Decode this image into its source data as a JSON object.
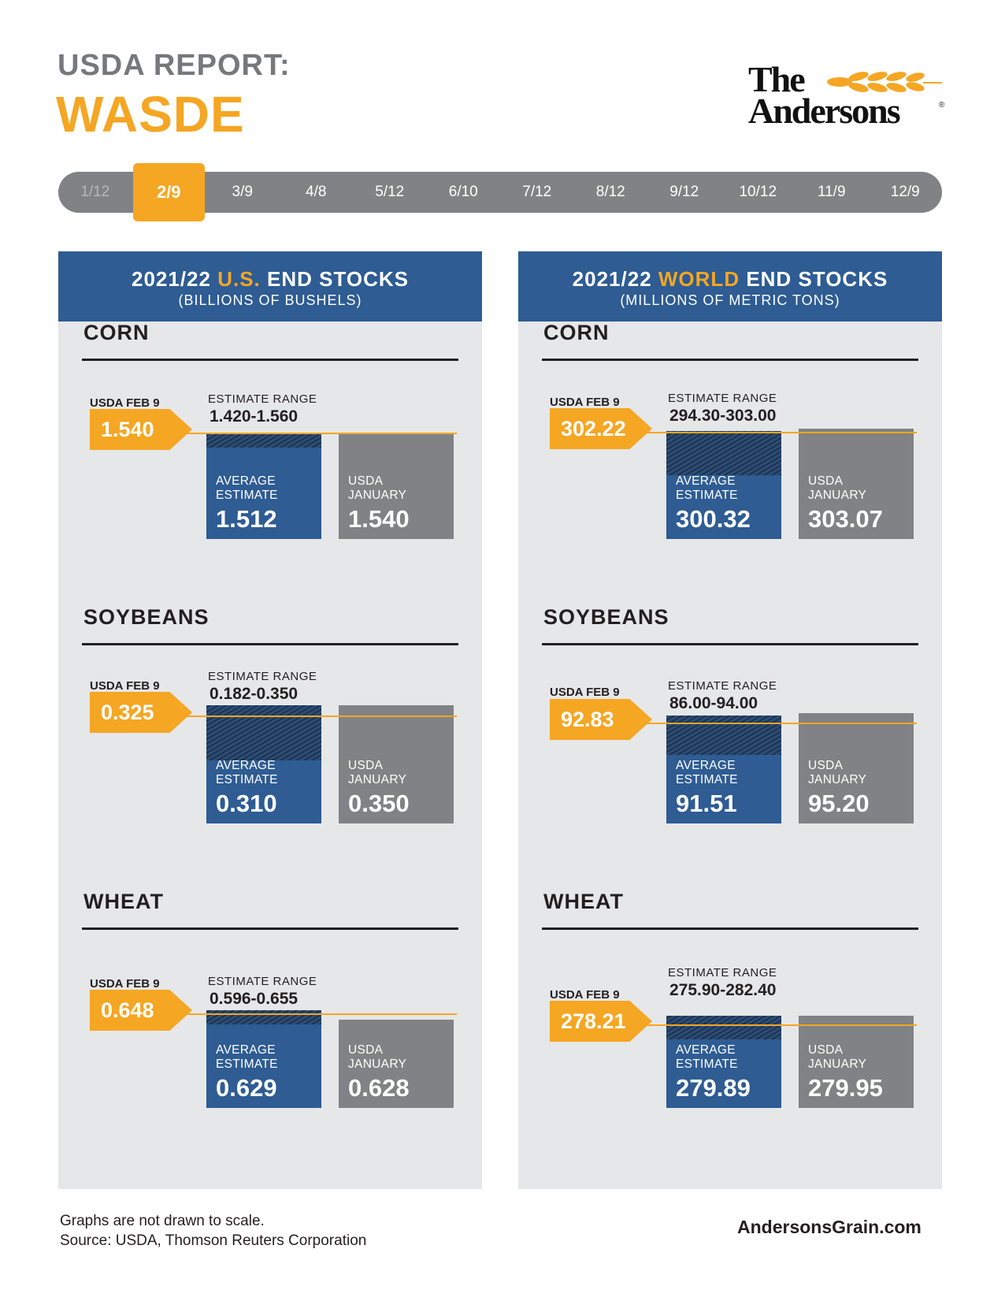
{
  "header": {
    "report_label": "USDA REPORT:",
    "report_name": "WASDE"
  },
  "logo": {
    "line1": "The",
    "line2": "Andersons",
    "reg_mark": "®"
  },
  "timeline": {
    "dates": [
      "1/12",
      "2/9",
      "3/9",
      "4/8",
      "5/12",
      "6/10",
      "7/12",
      "8/12",
      "9/12",
      "10/12",
      "11/9",
      "12/9"
    ],
    "active_index": 1
  },
  "colors": {
    "orange": "#f5a623",
    "blue": "#2e5c93",
    "gray": "#818285",
    "panel_bg": "#e6e7e8"
  },
  "labels": {
    "usda_feb": "USDA FEB 9",
    "estimate_range": "ESTIMATE RANGE",
    "average": "AVERAGE",
    "estimate": "ESTIMATE",
    "usda": "USDA",
    "january": "JANUARY"
  },
  "panels": [
    {
      "title_prefix": "2021/22 ",
      "title_highlight": "U.S.",
      "title_suffix": " END STOCKS",
      "subtitle": "(BILLIONS OF BUSHELS)"
    },
    {
      "title_prefix": "2021/22 ",
      "title_highlight": "WORLD",
      "title_suffix": " END STOCKS",
      "subtitle": "(MILLIONS OF METRIC TONS)"
    }
  ],
  "chart_data": [
    {
      "type": "bar",
      "panel": "2021/22 U.S. END STOCKS",
      "units": "(BILLIONS OF BUSHELS)",
      "commodities": [
        {
          "name": "CORN",
          "usda_feb9": "1.540",
          "estimate_range": "1.420-1.560",
          "range_low": 1.42,
          "range_high": 1.56,
          "average_estimate": "1.512",
          "usda_january": "1.540"
        },
        {
          "name": "SOYBEANS",
          "usda_feb9": "0.325",
          "estimate_range": "0.182-0.350",
          "range_low": 0.182,
          "range_high": 0.35,
          "average_estimate": "0.310",
          "usda_january": "0.350"
        },
        {
          "name": "WHEAT",
          "usda_feb9": "0.648",
          "estimate_range": "0.596-0.655",
          "range_low": 0.596,
          "range_high": 0.655,
          "average_estimate": "0.629",
          "usda_january": "0.628"
        }
      ]
    },
    {
      "type": "bar",
      "panel": "2021/22 WORLD END STOCKS",
      "units": "(MILLIONS OF METRIC TONS)",
      "commodities": [
        {
          "name": "CORN",
          "usda_feb9": "302.22",
          "estimate_range": "294.30-303.00",
          "range_low": 294.3,
          "range_high": 303.0,
          "average_estimate": "300.32",
          "usda_january": "303.07"
        },
        {
          "name": "SOYBEANS",
          "usda_feb9": "92.83",
          "estimate_range": "86.00-94.00",
          "range_low": 86.0,
          "range_high": 94.0,
          "average_estimate": "91.51",
          "usda_january": "95.20"
        },
        {
          "name": "WHEAT",
          "usda_feb9": "278.21",
          "estimate_range": "275.90-282.40",
          "range_low": 275.9,
          "range_high": 282.4,
          "average_estimate": "279.89",
          "usda_january": "279.95"
        }
      ]
    }
  ],
  "footer": {
    "note": "Graphs are not drawn to scale.",
    "source": "Source: USDA, Thomson Reuters Corporation",
    "site": "AndersonsGrain.com"
  }
}
